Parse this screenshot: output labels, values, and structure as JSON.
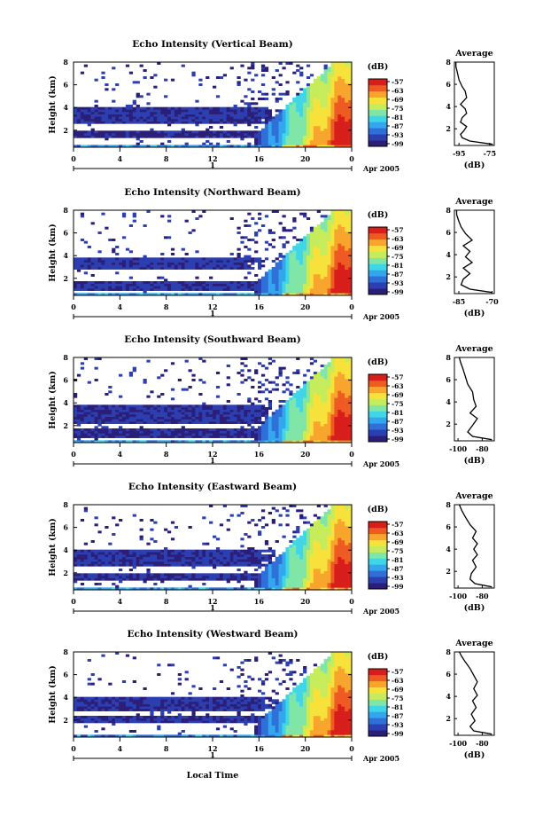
{
  "figure": {
    "xlabel": "Local Time",
    "date_label": "Apr 2005",
    "date_marker": "1",
    "colorbar_unit": "(dB)",
    "average_title": "Average",
    "average_xlabel": "(dB)"
  },
  "colorbar": {
    "ticks": [
      "-57",
      "-63",
      "-69",
      "-75",
      "-81",
      "-87",
      "-93",
      "-99"
    ],
    "colors": [
      "#2b1e78",
      "#2c3fb0",
      "#2f6fd8",
      "#33a6ee",
      "#3fd6e8",
      "#7fe6a8",
      "#c6ec5c",
      "#f6e23a",
      "#f7a52c",
      "#ee5b22",
      "#d81e1a"
    ]
  },
  "chart_data": [
    {
      "type": "heatmap",
      "title": "Echo Intensity (Vertical Beam)",
      "xlabel": "",
      "ylabel": "Height (km)",
      "x_ticks": [
        "0",
        "4",
        "8",
        "12",
        "16",
        "20",
        "0"
      ],
      "y_ticks": [
        "2",
        "4",
        "6",
        "8"
      ],
      "xlim": [
        0,
        24
      ],
      "ylim": [
        0.5,
        8
      ],
      "zlim": [
        -99,
        -57
      ],
      "z_unit": "dB",
      "bands": [
        {
          "y": [
            1.4,
            2.0
          ],
          "x_end": 20,
          "value": -96
        },
        {
          "y": [
            2.6,
            4.0
          ],
          "x_end": 17,
          "value": -95
        }
      ],
      "profile": {
        "title": "Average",
        "xlabel": "(dB)",
        "x_ticks": [
          "-95",
          "-75"
        ],
        "xlim": [
          -98,
          -72
        ],
        "y_ticks": [
          "2",
          "4",
          "6",
          "8"
        ],
        "ylim": [
          0.5,
          8
        ],
        "x": [
          -73,
          -88,
          -93,
          -94,
          -92,
          -90,
          -94,
          -93,
          -90,
          -91,
          -94,
          -90,
          -91,
          -93,
          -95,
          -96,
          -97,
          -97
        ],
        "y": [
          0.6,
          0.9,
          1.2,
          1.5,
          1.8,
          2.2,
          2.6,
          3.0,
          3.4,
          3.8,
          4.2,
          4.8,
          5.4,
          5.8,
          6.4,
          7.0,
          7.6,
          8.0
        ]
      }
    },
    {
      "type": "heatmap",
      "title": "Echo Intensity (Northward Beam)",
      "xlabel": "",
      "ylabel": "Height (km)",
      "x_ticks": [
        "0",
        "4",
        "8",
        "12",
        "16",
        "20",
        "0"
      ],
      "y_ticks": [
        "2",
        "4",
        "6",
        "8"
      ],
      "xlim": [
        0,
        24
      ],
      "ylim": [
        0.5,
        8
      ],
      "zlim": [
        -99,
        -57
      ],
      "z_unit": "dB",
      "bands": [
        {
          "y": [
            0.9,
            1.8
          ],
          "x_end": 20,
          "value": -95
        },
        {
          "y": [
            2.8,
            3.9
          ],
          "x_end": 16,
          "value": -94
        }
      ],
      "profile": {
        "title": "Average",
        "xlabel": "(dB)",
        "x_ticks": [
          "-85",
          "-70"
        ],
        "xlim": [
          -87,
          -69
        ],
        "y_ticks": [
          "2",
          "4",
          "6",
          "8"
        ],
        "ylim": [
          0.5,
          8
        ],
        "x": [
          -70,
          -80,
          -84,
          -83,
          -80,
          -83,
          -79,
          -82,
          -80,
          -83,
          -79,
          -82,
          -84,
          -85,
          -86,
          -86
        ],
        "y": [
          0.6,
          0.9,
          1.3,
          1.8,
          2.3,
          2.8,
          3.3,
          3.8,
          4.3,
          4.8,
          5.3,
          5.9,
          6.5,
          7.0,
          7.6,
          8.0
        ]
      }
    },
    {
      "type": "heatmap",
      "title": "Echo Intensity (Southward Beam)",
      "xlabel": "",
      "ylabel": "Height (km)",
      "x_ticks": [
        "0",
        "4",
        "8",
        "12",
        "16",
        "20",
        "0"
      ],
      "y_ticks": [
        "2",
        "4",
        "6",
        "8"
      ],
      "xlim": [
        0,
        24
      ],
      "ylim": [
        0.5,
        8
      ],
      "zlim": [
        -99,
        -57
      ],
      "z_unit": "dB",
      "bands": [
        {
          "y": [
            2.2,
            3.8
          ],
          "x_end": 17,
          "value": -95
        },
        {
          "y": [
            1.0,
            1.7
          ],
          "x_end": 19,
          "value": -96
        }
      ],
      "profile": {
        "title": "Average",
        "xlabel": "(dB)",
        "x_ticks": [
          "-100",
          "-80"
        ],
        "xlim": [
          -103,
          -70
        ],
        "y_ticks": [
          "2",
          "4",
          "6",
          "8"
        ],
        "ylim": [
          0.5,
          8
        ],
        "x": [
          -72,
          -88,
          -92,
          -88,
          -84,
          -90,
          -85,
          -87,
          -88,
          -92,
          -94,
          -96,
          -98,
          -99
        ],
        "y": [
          0.6,
          0.9,
          1.3,
          1.9,
          2.5,
          3.0,
          3.6,
          4.2,
          4.9,
          5.6,
          6.3,
          7.0,
          7.6,
          8.0
        ]
      }
    },
    {
      "type": "heatmap",
      "title": "Echo Intensity (Eastward Beam)",
      "xlabel": "",
      "ylabel": "Height (km)",
      "x_ticks": [
        "0",
        "4",
        "8",
        "12",
        "16",
        "20",
        "0"
      ],
      "y_ticks": [
        "2",
        "4",
        "6",
        "8"
      ],
      "xlim": [
        0,
        24
      ],
      "ylim": [
        0.5,
        8
      ],
      "zlim": [
        -99,
        -57
      ],
      "z_unit": "dB",
      "bands": [
        {
          "y": [
            1.3,
            2.0
          ],
          "x_end": 20,
          "value": -95
        },
        {
          "y": [
            2.6,
            4.0
          ],
          "x_end": 17,
          "value": -95
        }
      ],
      "profile": {
        "title": "Average",
        "xlabel": "(dB)",
        "x_ticks": [
          "-100",
          "-80"
        ],
        "xlim": [
          -103,
          -70
        ],
        "y_ticks": [
          "2",
          "4",
          "6",
          "8"
        ],
        "ylim": [
          0.5,
          8
        ],
        "x": [
          -72,
          -86,
          -90,
          -89,
          -85,
          -88,
          -84,
          -87,
          -84,
          -88,
          -85,
          -90,
          -94,
          -97,
          -99
        ],
        "y": [
          0.6,
          0.9,
          1.3,
          1.8,
          2.4,
          3.0,
          3.5,
          4.0,
          4.5,
          5.0,
          5.6,
          6.2,
          6.9,
          7.5,
          8.0
        ]
      }
    },
    {
      "type": "heatmap",
      "title": "Echo Intensity (Westward Beam)",
      "xlabel": "Local Time",
      "ylabel": "Height (km)",
      "x_ticks": [
        "0",
        "4",
        "8",
        "12",
        "16",
        "20",
        "0"
      ],
      "y_ticks": [
        "2",
        "4",
        "6",
        "8"
      ],
      "xlim": [
        0,
        24
      ],
      "ylim": [
        0.5,
        8
      ],
      "zlim": [
        -99,
        -57
      ],
      "z_unit": "dB",
      "bands": [
        {
          "y": [
            1.7,
            2.3
          ],
          "x_end": 20,
          "value": -95
        },
        {
          "y": [
            2.8,
            4.1
          ],
          "x_end": 17,
          "value": -95
        }
      ],
      "profile": {
        "title": "Average",
        "xlabel": "(dB)",
        "x_ticks": [
          "-100",
          "-80"
        ],
        "xlim": [
          -103,
          -70
        ],
        "y_ticks": [
          "2",
          "4",
          "6",
          "8"
        ],
        "ylim": [
          0.5,
          8
        ],
        "x": [
          -72,
          -87,
          -90,
          -86,
          -89,
          -85,
          -88,
          -84,
          -87,
          -84,
          -87,
          -90,
          -94,
          -97,
          -99
        ],
        "y": [
          0.6,
          0.9,
          1.3,
          1.8,
          2.4,
          3.0,
          3.6,
          4.1,
          4.7,
          5.3,
          5.9,
          6.5,
          7.1,
          7.6,
          8.0
        ]
      }
    }
  ]
}
